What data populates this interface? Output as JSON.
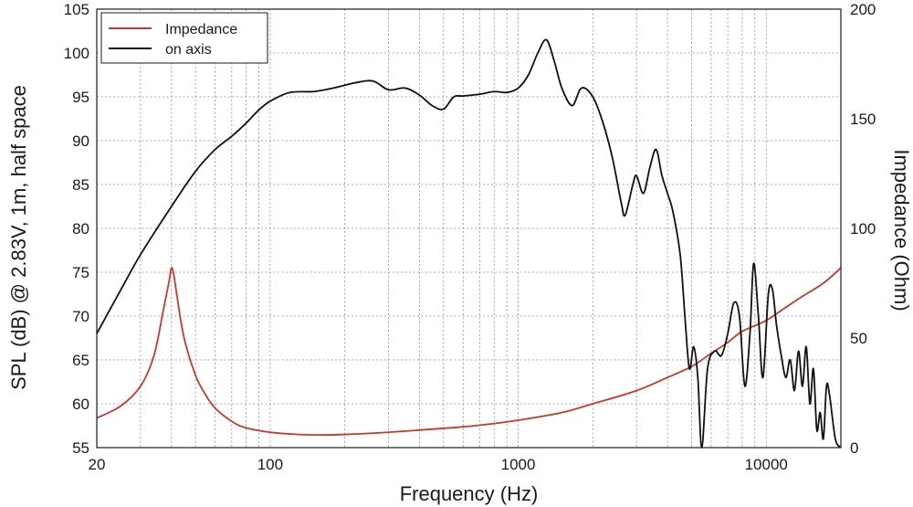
{
  "chart_data": {
    "type": "line",
    "xlabel": "Frequency (Hz)",
    "ylabel_left": "SPL (dB) @ 2.83V, 1m, half space",
    "ylabel_right": "Impedance (Ohm)",
    "x_scale": "log",
    "xlim": [
      20,
      20000
    ],
    "ylim_left": [
      55,
      105
    ],
    "ylim_right": [
      0,
      200
    ],
    "x_tick_labels": [
      {
        "value": 20,
        "label": "20"
      },
      {
        "value": 100,
        "label": "100"
      },
      {
        "value": 1000,
        "label": "1000"
      },
      {
        "value": 10000,
        "label": "10000"
      }
    ],
    "y_left_ticks": [
      55,
      60,
      65,
      70,
      75,
      80,
      85,
      90,
      95,
      100,
      105
    ],
    "y_right_ticks": [
      0,
      50,
      100,
      150,
      200
    ],
    "grid": true,
    "legend_position": "top-left",
    "series": [
      {
        "name": "Impedance",
        "color": "#c8382c",
        "axis": "right",
        "points": [
          [
            20,
            13.5
          ],
          [
            25,
            19
          ],
          [
            30,
            28
          ],
          [
            34,
            42
          ],
          [
            37,
            62
          ],
          [
            39,
            75
          ],
          [
            40,
            82
          ],
          [
            41,
            78
          ],
          [
            42,
            70
          ],
          [
            45,
            50
          ],
          [
            50,
            33
          ],
          [
            55,
            24
          ],
          [
            60,
            18
          ],
          [
            70,
            12
          ],
          [
            80,
            9
          ],
          [
            100,
            7
          ],
          [
            130,
            6
          ],
          [
            170,
            5.8
          ],
          [
            250,
            6.5
          ],
          [
            400,
            8
          ],
          [
            600,
            9.5
          ],
          [
            800,
            11
          ],
          [
            1000,
            12.5
          ],
          [
            1500,
            16
          ],
          [
            2000,
            20
          ],
          [
            3000,
            26
          ],
          [
            4000,
            32
          ],
          [
            5000,
            37
          ],
          [
            6000,
            43
          ],
          [
            7000,
            48
          ],
          [
            8000,
            53
          ],
          [
            10000,
            58
          ],
          [
            12000,
            64
          ],
          [
            14000,
            69
          ],
          [
            17000,
            75
          ],
          [
            20000,
            82
          ]
        ]
      },
      {
        "name": "on axis",
        "color": "#111111",
        "axis": "left",
        "points": [
          [
            20,
            68
          ],
          [
            25,
            73
          ],
          [
            30,
            77
          ],
          [
            40,
            82.5
          ],
          [
            50,
            86.5
          ],
          [
            60,
            89
          ],
          [
            70,
            90.5
          ],
          [
            80,
            92
          ],
          [
            90,
            93.5
          ],
          [
            100,
            94.5
          ],
          [
            120,
            95.5
          ],
          [
            150,
            95.6
          ],
          [
            180,
            96
          ],
          [
            220,
            96.6
          ],
          [
            260,
            96.8
          ],
          [
            300,
            95.8
          ],
          [
            350,
            96
          ],
          [
            400,
            95.2
          ],
          [
            450,
            94
          ],
          [
            500,
            93.6
          ],
          [
            550,
            95
          ],
          [
            600,
            95.1
          ],
          [
            700,
            95.3
          ],
          [
            800,
            95.6
          ],
          [
            900,
            95.5
          ],
          [
            1000,
            96
          ],
          [
            1100,
            97.5
          ],
          [
            1200,
            100
          ],
          [
            1300,
            101.5
          ],
          [
            1400,
            99
          ],
          [
            1500,
            96
          ],
          [
            1650,
            94
          ],
          [
            1800,
            96
          ],
          [
            2000,
            95
          ],
          [
            2200,
            92
          ],
          [
            2400,
            88
          ],
          [
            2600,
            83
          ],
          [
            2700,
            81.5
          ],
          [
            2900,
            85
          ],
          [
            3000,
            86
          ],
          [
            3200,
            84
          ],
          [
            3400,
            87
          ],
          [
            3600,
            89
          ],
          [
            3800,
            86
          ],
          [
            4000,
            84
          ],
          [
            4200,
            82
          ],
          [
            4500,
            77
          ],
          [
            4700,
            70
          ],
          [
            4900,
            64
          ],
          [
            5100,
            66.5
          ],
          [
            5300,
            63
          ],
          [
            5500,
            55
          ],
          [
            5800,
            64
          ],
          [
            6200,
            66
          ],
          [
            6600,
            65.5
          ],
          [
            7000,
            68
          ],
          [
            7400,
            71.5
          ],
          [
            7800,
            70
          ],
          [
            8200,
            62
          ],
          [
            8600,
            68
          ],
          [
            8900,
            76
          ],
          [
            9300,
            70
          ],
          [
            9700,
            63
          ],
          [
            10200,
            72.5
          ],
          [
            10600,
            73
          ],
          [
            11000,
            69
          ],
          [
            11500,
            65.5
          ],
          [
            12000,
            63
          ],
          [
            12500,
            65
          ],
          [
            13000,
            61.5
          ],
          [
            13500,
            66
          ],
          [
            14000,
            62
          ],
          [
            14500,
            66.5
          ],
          [
            15000,
            60
          ],
          [
            15500,
            64
          ],
          [
            16000,
            57
          ],
          [
            16500,
            59
          ],
          [
            17000,
            56
          ],
          [
            17500,
            62
          ],
          [
            18000,
            61
          ],
          [
            19000,
            56
          ],
          [
            20000,
            55
          ]
        ]
      }
    ]
  }
}
